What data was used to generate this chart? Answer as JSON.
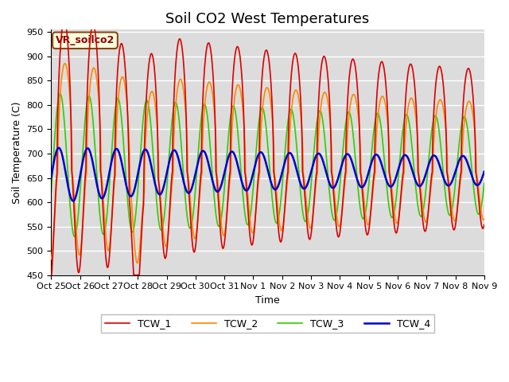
{
  "title": "Soil CO2 West Temperatures",
  "ylabel": "Soil Temperature (C)",
  "xlabel": "Time",
  "ylim": [
    450,
    955
  ],
  "yticks": [
    450,
    500,
    550,
    600,
    650,
    700,
    750,
    800,
    850,
    900,
    950
  ],
  "annotation_text": "VR_soilco2",
  "annotation_bbox_facecolor": "#ffffe0",
  "annotation_bbox_edgecolor": "#8B4513",
  "bg_color": "#dcdcdc",
  "fig_color": "#ffffff",
  "line_colors": {
    "TCW_1": "#dd0000",
    "TCW_2": "#ff8800",
    "TCW_3": "#33cc00",
    "TCW_4": "#0000cc"
  },
  "xtick_labels": [
    "Oct 25",
    "Oct 26",
    "Oct 27",
    "Oct 28",
    "Oct 29",
    "Oct 30",
    "Oct 31",
    "Nov 1",
    "Nov 2",
    "Nov 3",
    "Nov 4",
    "Nov 5",
    "Nov 6",
    "Nov 7",
    "Nov 8",
    "Nov 9"
  ],
  "title_fontsize": 13,
  "label_fontsize": 9,
  "tick_fontsize": 8
}
